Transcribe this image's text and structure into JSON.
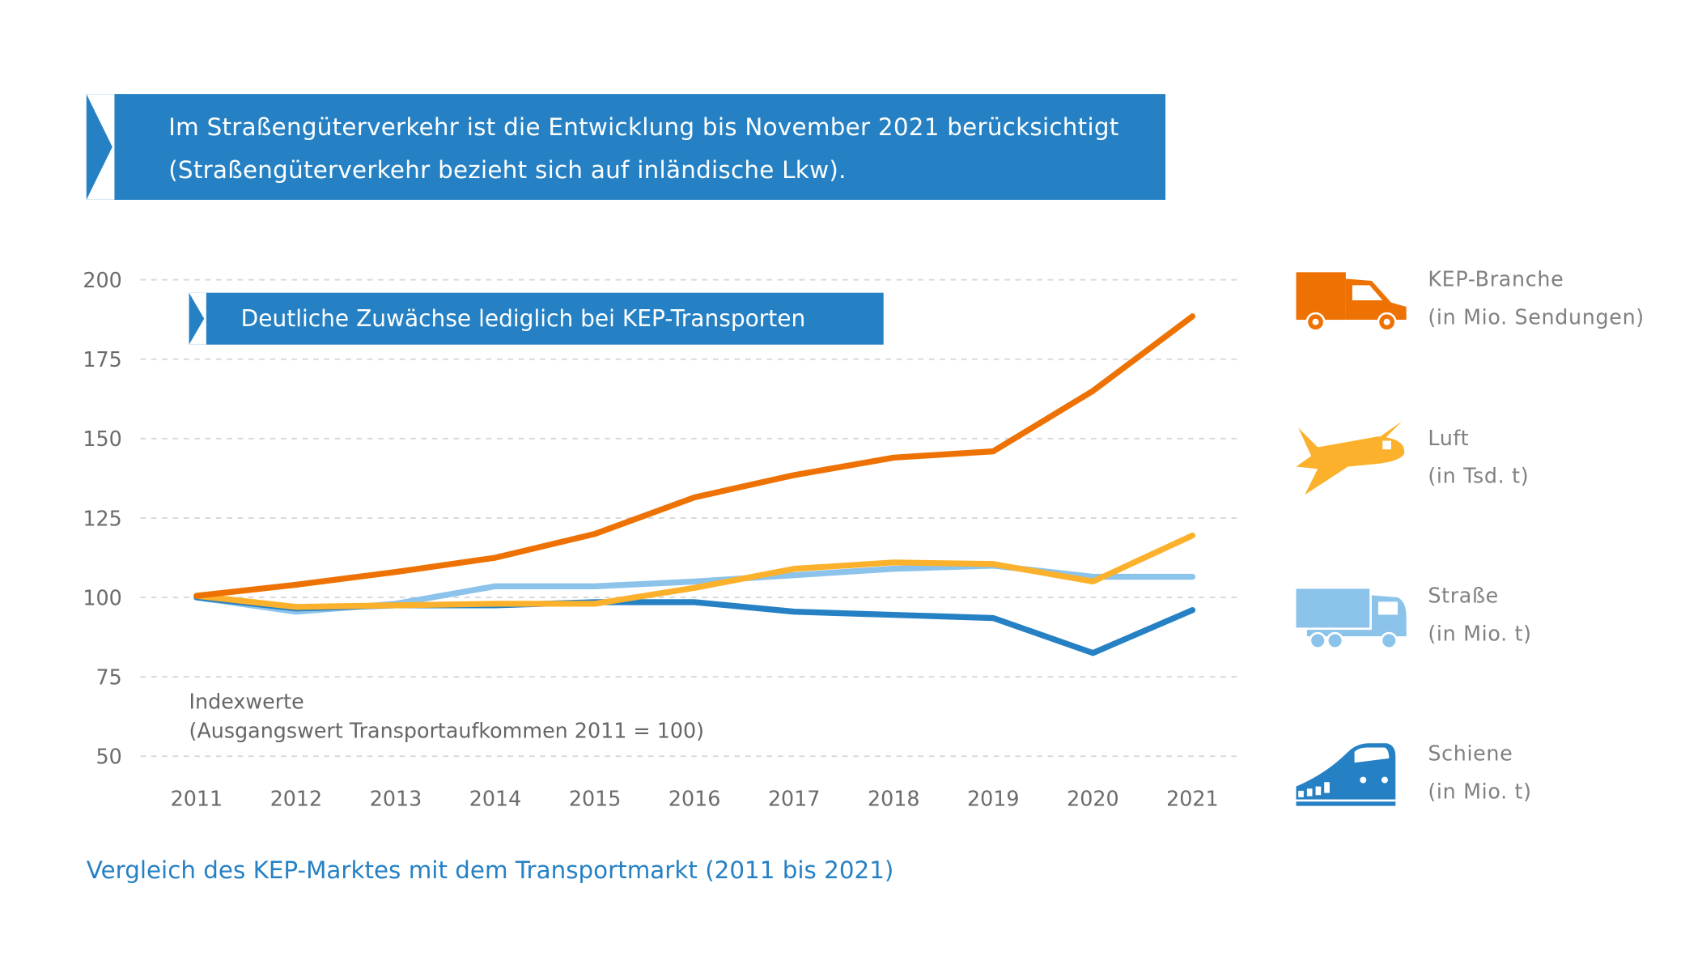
{
  "header_note": {
    "line1": "Im Straßengüterverkehr ist die Entwicklung bis November 2021 berücksichtigt",
    "line2": "(Straßengüterverkehr bezieht sich auf inländische Lkw)."
  },
  "colors": {
    "banner": "#2581c4",
    "kep": "#ee7203",
    "luft": "#fbb12b",
    "strasse": "#8cc3ea",
    "schiene": "#2581c4",
    "grid": "#d9d9d9"
  },
  "chart_data": {
    "type": "line",
    "title": "Deutliche Zuwächse lediglich bei KEP-Transporten",
    "annotation": [
      "Indexwerte",
      "(Ausgangswert Transportaufkommen 2011 = 100)"
    ],
    "categories": [
      "2011",
      "2012",
      "2013",
      "2014",
      "2015",
      "2016",
      "2017",
      "2018",
      "2019",
      "2020",
      "2021"
    ],
    "ylim": [
      50,
      200
    ],
    "yticks": [
      200,
      175,
      150,
      125,
      100,
      75,
      50
    ],
    "grid": true,
    "legend_placement": "right",
    "series": [
      {
        "key": "strasse",
        "name": "Straße",
        "unit": "(in Mio. t)",
        "icon": "truck-icon",
        "values": [
          100,
          95.5,
          98,
          103.5,
          103.5,
          105,
          107,
          109,
          110,
          106.5,
          106.5
        ]
      },
      {
        "key": "schiene",
        "name": "Schiene",
        "unit": "(in Mio. t)",
        "icon": "train-icon",
        "values": [
          100,
          96.5,
          97.5,
          97.5,
          98.5,
          98.5,
          95.5,
          94.5,
          93.5,
          82.5,
          96
        ]
      },
      {
        "key": "luft",
        "name": "Luft",
        "unit": "(in Tsd. t)",
        "icon": "airplane-icon",
        "values": [
          100.5,
          97,
          97.5,
          98,
          98,
          103,
          109,
          111,
          110.5,
          105,
          119.5
        ]
      },
      {
        "key": "kep",
        "name": "KEP-Branche",
        "unit": "(in Mio. Sendungen)",
        "icon": "delivery-van-icon",
        "values": [
          100.5,
          104,
          108,
          112.5,
          120,
          131.5,
          138.5,
          144,
          146,
          165,
          188.5
        ]
      }
    ]
  },
  "caption": "Vergleich des KEP-Marktes mit dem Transportmarkt (2011 bis 2021)"
}
